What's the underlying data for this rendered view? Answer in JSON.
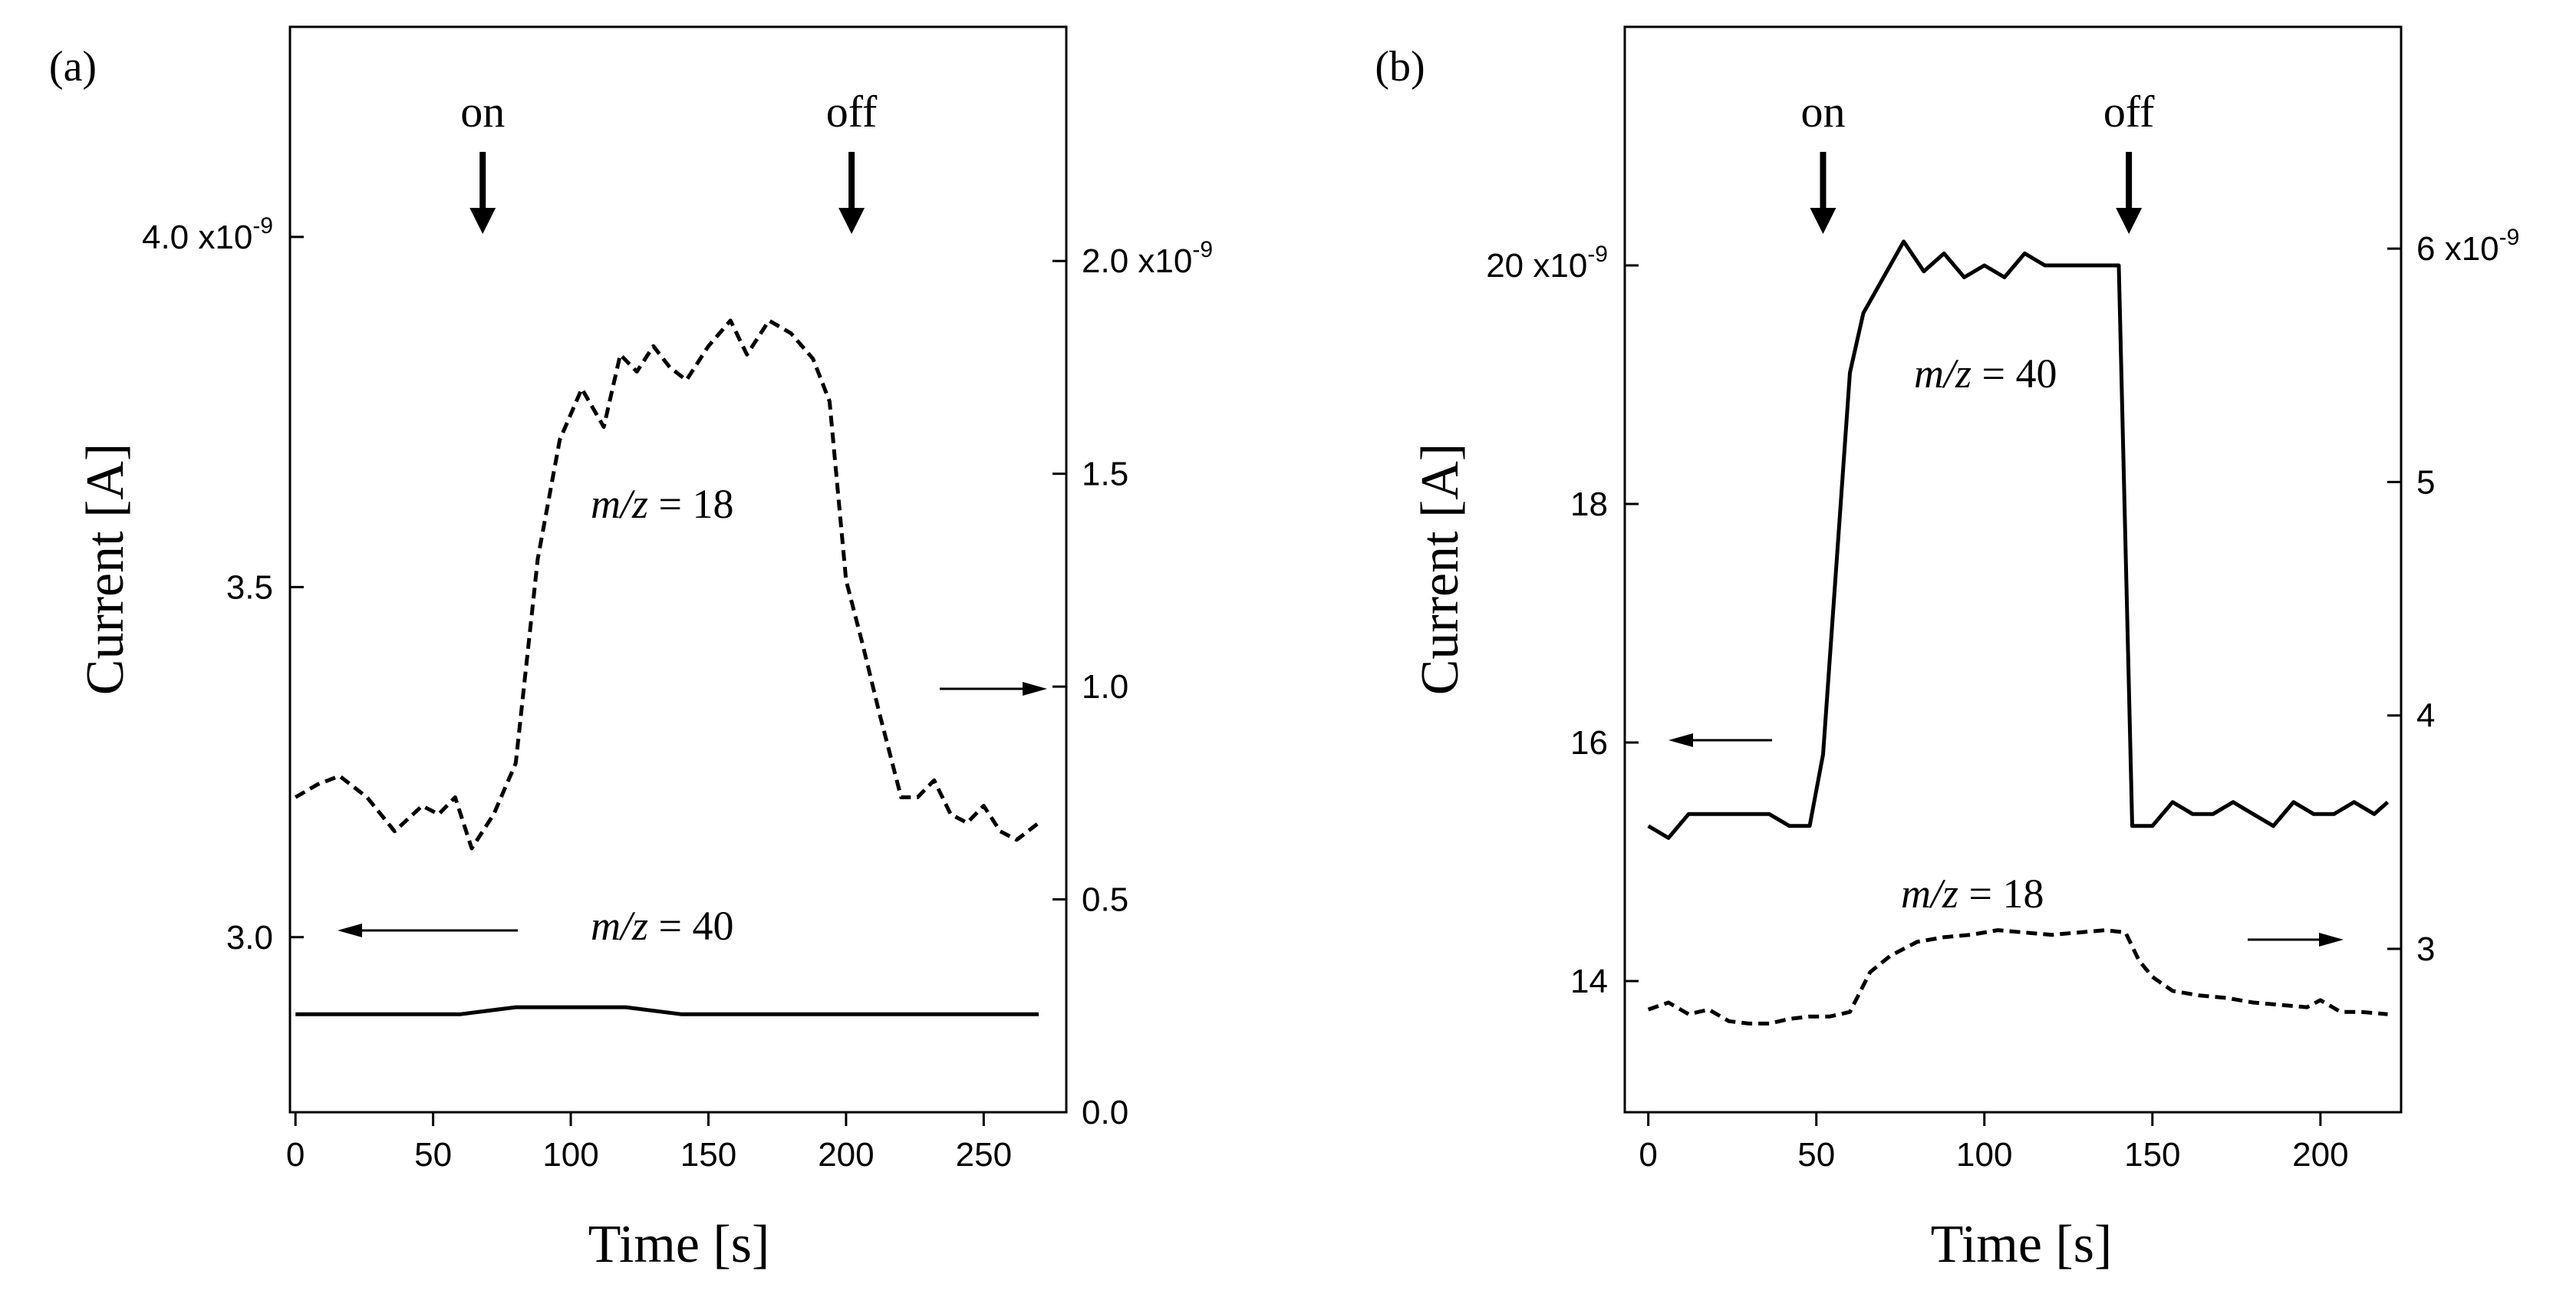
{
  "chart_data": [
    {
      "type": "line",
      "panel_label": "(a)",
      "xlabel": "Time [s]",
      "ylabel": "Current [A]",
      "xlim": [
        -2,
        280
      ],
      "xticks": [
        0,
        50,
        100,
        150,
        200,
        250
      ],
      "left_axis": {
        "lim": [
          2.75,
          4.3
        ],
        "ticks": [
          {
            "value": 3.0,
            "label": "3.0"
          },
          {
            "value": 3.5,
            "label": "3.5"
          },
          {
            "value": 4.0,
            "label": "4.0 x10"
          }
        ],
        "exponent": "-9"
      },
      "right_axis": {
        "lim": [
          0.0,
          2.55
        ],
        "ticks": [
          {
            "value": 0.0,
            "label": "0.0"
          },
          {
            "value": 0.5,
            "label": "0.5"
          },
          {
            "value": 1.0,
            "label": "1.0"
          },
          {
            "value": 1.5,
            "label": "1.5"
          },
          {
            "value": 2.0,
            "label": "2.0 x10"
          }
        ],
        "exponent": "-9"
      },
      "series": [
        {
          "name": "m/z = 40",
          "axis": "left",
          "style": "solid",
          "x": [
            0,
            20,
            40,
            60,
            80,
            100,
            120,
            140,
            160,
            180,
            200,
            220,
            240,
            270
          ],
          "y": [
            2.89,
            2.89,
            2.89,
            2.89,
            2.9,
            2.9,
            2.9,
            2.89,
            2.89,
            2.89,
            2.89,
            2.89,
            2.89,
            2.89
          ]
        },
        {
          "name": "m/z = 18",
          "axis": "right",
          "style": "dashed",
          "x": [
            0,
            8,
            16,
            26,
            36,
            46,
            52,
            58,
            64,
            72,
            80,
            88,
            96,
            104,
            112,
            118,
            124,
            130,
            136,
            142,
            150,
            158,
            164,
            172,
            180,
            188,
            194,
            200,
            206,
            212,
            220,
            226,
            232,
            238,
            244,
            250,
            256,
            262,
            270
          ],
          "y": [
            0.74,
            0.77,
            0.79,
            0.74,
            0.66,
            0.72,
            0.7,
            0.74,
            0.62,
            0.7,
            0.82,
            1.3,
            1.58,
            1.7,
            1.61,
            1.78,
            1.74,
            1.8,
            1.75,
            1.72,
            1.8,
            1.86,
            1.78,
            1.86,
            1.83,
            1.77,
            1.67,
            1.25,
            1.1,
            0.94,
            0.74,
            0.74,
            0.78,
            0.7,
            0.68,
            0.72,
            0.66,
            0.64,
            0.68
          ]
        }
      ],
      "annotations": [
        {
          "text": "on",
          "x": 68
        },
        {
          "text": "off",
          "x": 202
        }
      ]
    },
    {
      "type": "line",
      "panel_label": "(b)",
      "xlabel": "Time [s]",
      "ylabel": "Current [A]",
      "xlim": [
        -7,
        224
      ],
      "xticks": [
        0,
        50,
        100,
        150,
        200
      ],
      "left_axis": {
        "lim": [
          12.9,
          22.0
        ],
        "ticks": [
          {
            "value": 14,
            "label": "14"
          },
          {
            "value": 16,
            "label": "16"
          },
          {
            "value": 18,
            "label": "18"
          },
          {
            "value": 20,
            "label": "20 x10"
          }
        ],
        "exponent": "-9"
      },
      "right_axis": {
        "lim": [
          2.3,
          6.95
        ],
        "ticks": [
          {
            "value": 3,
            "label": "3"
          },
          {
            "value": 4,
            "label": "4"
          },
          {
            "value": 5,
            "label": "5"
          },
          {
            "value": 6,
            "label": "6 x10"
          }
        ],
        "exponent": "-9"
      },
      "series": [
        {
          "name": "m/z = 40",
          "axis": "left",
          "style": "solid",
          "x": [
            0,
            6,
            12,
            18,
            24,
            30,
            36,
            42,
            48,
            52,
            56,
            60,
            64,
            70,
            76,
            82,
            88,
            94,
            100,
            106,
            112,
            118,
            124,
            130,
            136,
            140,
            144,
            150,
            156,
            162,
            168,
            174,
            180,
            186,
            192,
            198,
            204,
            210,
            216,
            220
          ],
          "y": [
            15.3,
            15.2,
            15.4,
            15.4,
            15.4,
            15.4,
            15.4,
            15.3,
            15.3,
            15.9,
            17.5,
            19.1,
            19.6,
            19.9,
            20.2,
            19.95,
            20.1,
            19.9,
            20.0,
            19.9,
            20.1,
            20.0,
            20.0,
            20.0,
            20.0,
            20.0,
            15.3,
            15.3,
            15.5,
            15.4,
            15.4,
            15.5,
            15.4,
            15.3,
            15.5,
            15.4,
            15.4,
            15.5,
            15.4,
            15.5
          ]
        },
        {
          "name": "m/z = 18",
          "axis": "right",
          "style": "dashed",
          "x": [
            0,
            6,
            12,
            18,
            24,
            30,
            36,
            42,
            48,
            54,
            60,
            66,
            72,
            80,
            88,
            96,
            104,
            112,
            120,
            128,
            136,
            142,
            146,
            150,
            156,
            164,
            172,
            180,
            188,
            196,
            200,
            206,
            212,
            220
          ],
          "y": [
            2.74,
            2.77,
            2.72,
            2.74,
            2.69,
            2.68,
            2.68,
            2.7,
            2.71,
            2.71,
            2.73,
            2.9,
            2.97,
            3.03,
            3.05,
            3.06,
            3.08,
            3.07,
            3.06,
            3.07,
            3.08,
            3.07,
            2.95,
            2.88,
            2.82,
            2.8,
            2.79,
            2.77,
            2.76,
            2.75,
            2.78,
            2.73,
            2.73,
            2.72
          ]
        }
      ],
      "annotations": [
        {
          "text": "on",
          "x": 52
        },
        {
          "text": "off",
          "x": 143
        }
      ]
    }
  ]
}
